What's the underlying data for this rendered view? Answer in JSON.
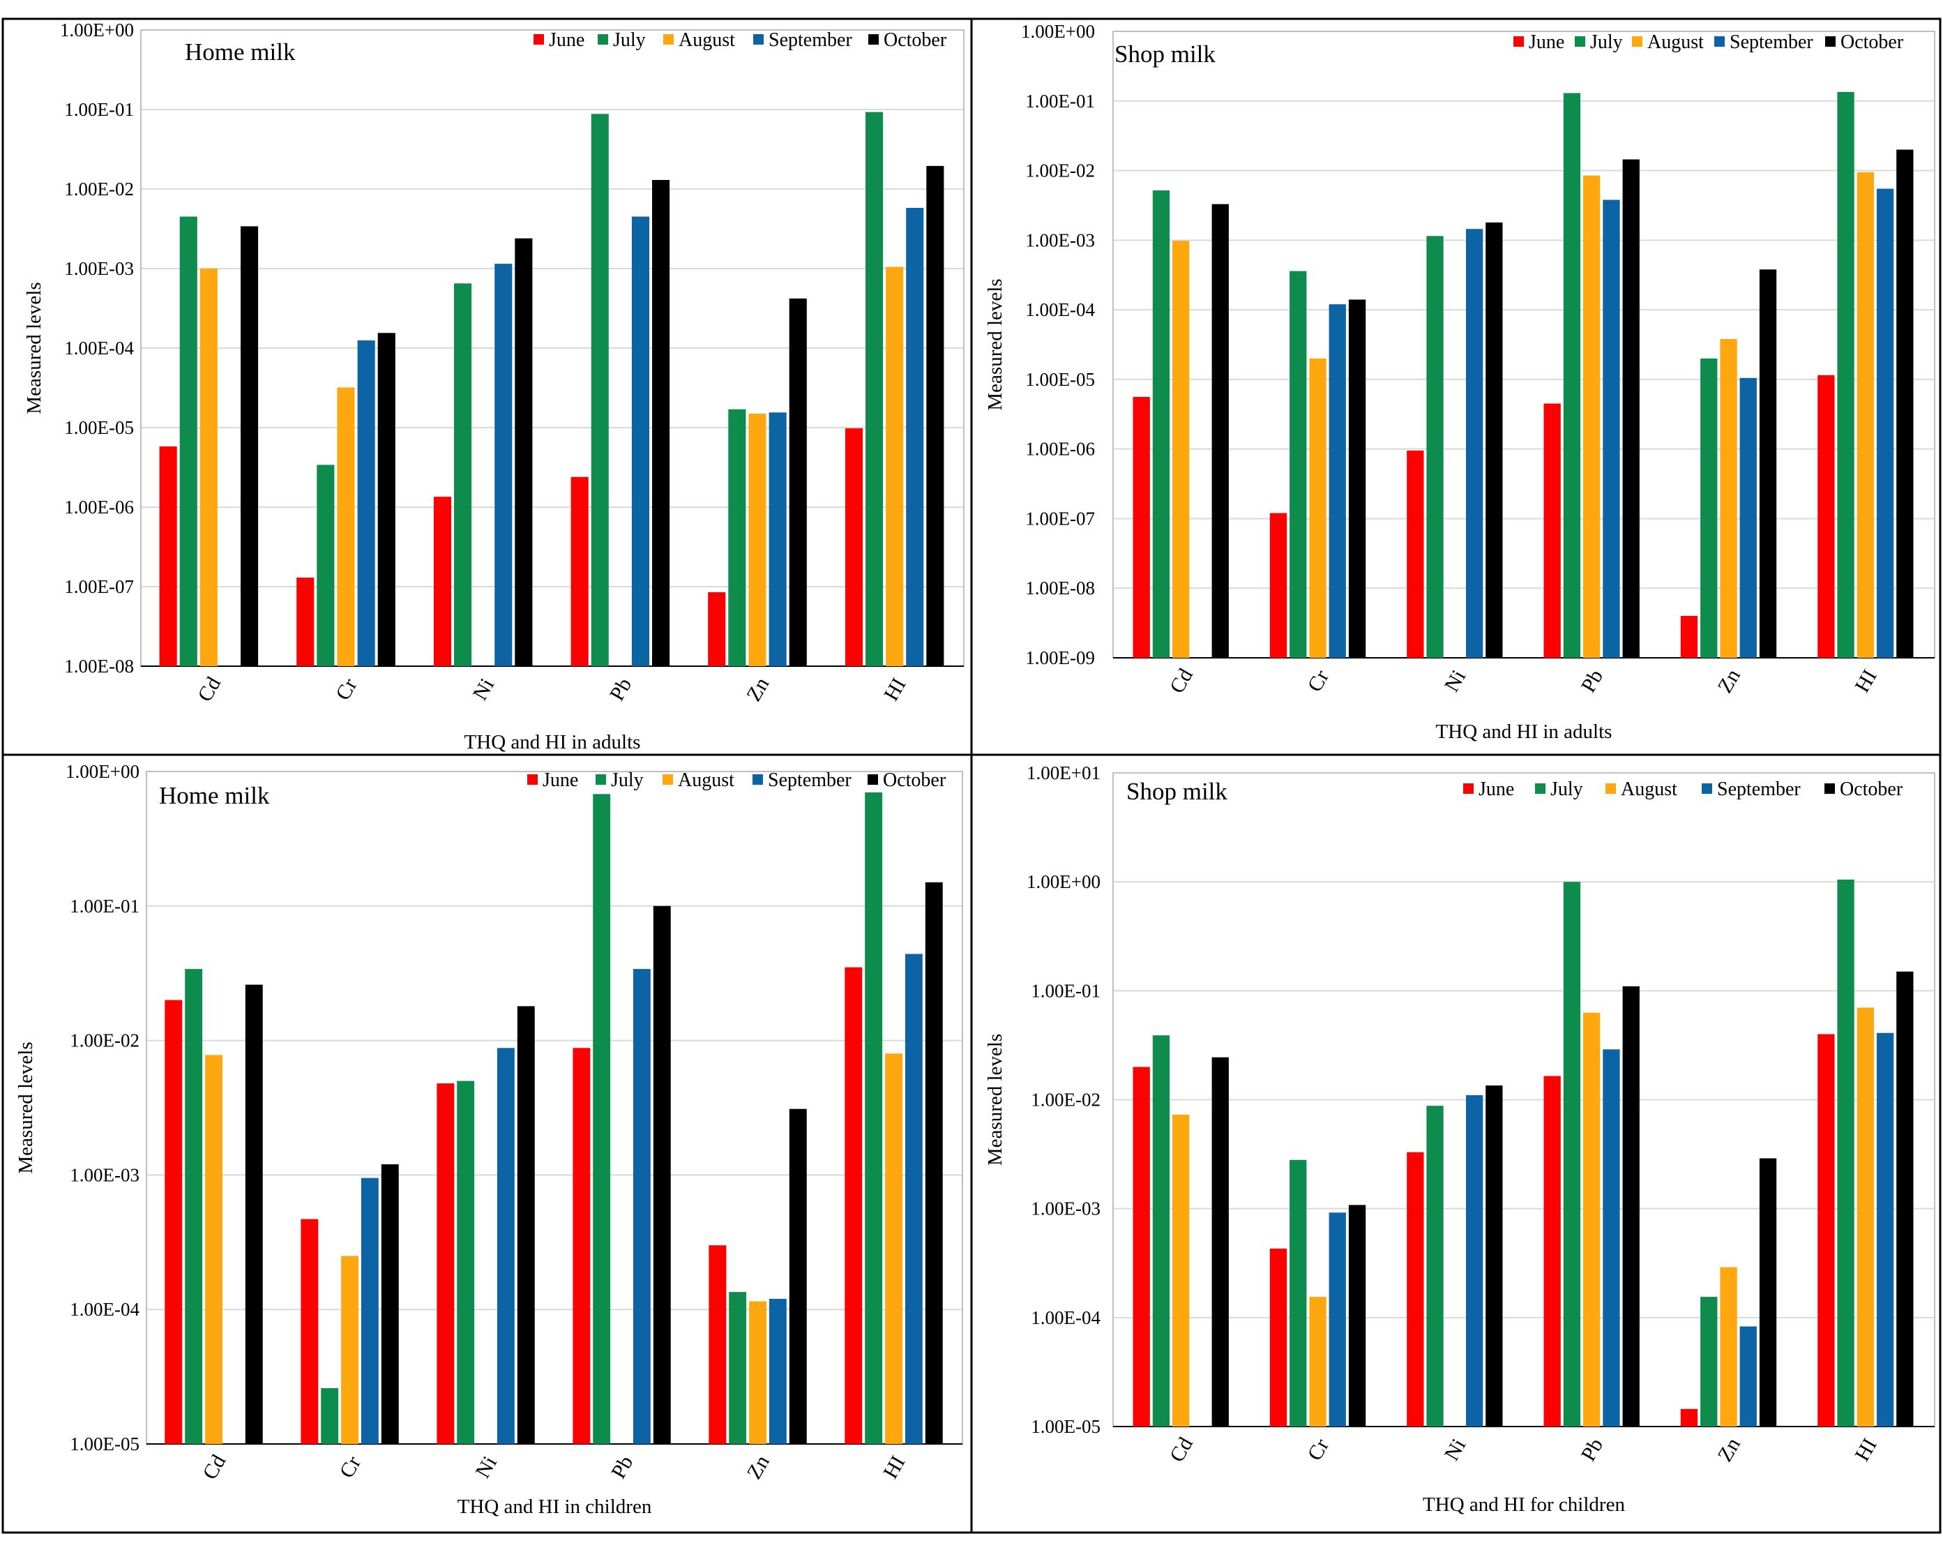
{
  "figure_colors": {
    "June": "#FF0000",
    "July": "#0E8C4E",
    "August": "#FFA70F",
    "September": "#0C64A4",
    "October": "#000000",
    "gridline": "#D9D9D9",
    "frame": "#000000"
  },
  "chart_data": [
    {
      "type": "bar",
      "scale": "log",
      "title": "Home milk",
      "xlabel": "THQ and HI in adults",
      "ylabel": "Measured levels",
      "legend_position": "top-right",
      "ylim": [
        1e-08,
        1
      ],
      "ytick_labels": [
        "1.00E-08",
        "1.00E-07",
        "1.00E-06",
        "1.00E-05",
        "1.00E-04",
        "1.00E-03",
        "1.00E-02",
        "1.00E-01",
        "1.00E+00"
      ],
      "categories": [
        "Cd",
        "Cr",
        "Ni",
        "Pb",
        "Zn",
        "HI"
      ],
      "series": [
        {
          "name": "June",
          "values": [
            5.8e-06,
            1.3e-07,
            1.35e-06,
            2.4e-06,
            8.5e-08,
            9.8e-06
          ]
        },
        {
          "name": "July",
          "values": [
            0.0045,
            3.4e-06,
            0.00065,
            0.088,
            1.7e-05,
            0.093
          ]
        },
        {
          "name": "August",
          "values": [
            0.001,
            3.2e-05,
            null,
            null,
            1.5e-05,
            0.00105
          ]
        },
        {
          "name": "September",
          "values": [
            null,
            0.000125,
            0.00115,
            0.0045,
            1.55e-05,
            0.0058
          ]
        },
        {
          "name": "October",
          "values": [
            0.0034,
            0.000155,
            0.0024,
            0.013,
            0.00042,
            0.0195
          ]
        }
      ]
    },
    {
      "type": "bar",
      "scale": "log",
      "title": "Shop milk",
      "xlabel": "THQ and HI in adults",
      "ylabel": "Measured levels",
      "legend_position": "top-right",
      "ylim": [
        1e-09,
        1
      ],
      "ytick_labels": [
        "1.00E-09",
        "1.00E-08",
        "1.00E-07",
        "1.00E-06",
        "1.00E-05",
        "1.00E-04",
        "1.00E-03",
        "1.00E-02",
        "1.00E-01",
        "1.00E+00"
      ],
      "categories": [
        "Cd",
        "Cr",
        "Ni",
        "Pb",
        "Zn",
        "HI"
      ],
      "series": [
        {
          "name": "June",
          "values": [
            5.6e-06,
            1.2e-07,
            9.5e-07,
            4.5e-06,
            4e-09,
            1.15e-05
          ]
        },
        {
          "name": "July",
          "values": [
            0.0052,
            0.00036,
            0.00115,
            0.13,
            2e-05,
            0.135
          ]
        },
        {
          "name": "August",
          "values": [
            0.00098,
            2e-05,
            null,
            0.0085,
            3.8e-05,
            0.0095
          ]
        },
        {
          "name": "September",
          "values": [
            null,
            0.00012,
            0.00145,
            0.0038,
            1.05e-05,
            0.0055
          ]
        },
        {
          "name": "October",
          "values": [
            0.0033,
            0.00014,
            0.0018,
            0.0145,
            0.00038,
            0.02
          ]
        }
      ]
    },
    {
      "type": "bar",
      "scale": "log",
      "title": "Home milk",
      "xlabel": "THQ and HI in children",
      "ylabel": "Measured levels",
      "legend_position": "top-right",
      "ylim": [
        1e-05,
        1
      ],
      "ytick_labels": [
        "1.00E-05",
        "1.00E-04",
        "1.00E-03",
        "1.00E-02",
        "1.00E-01",
        "1.00E+00"
      ],
      "categories": [
        "Cd",
        "Cr",
        "Ni",
        "Pb",
        "Zn",
        "HI"
      ],
      "series": [
        {
          "name": "June",
          "values": [
            0.02,
            0.00047,
            0.0048,
            0.0088,
            0.0003,
            0.035
          ]
        },
        {
          "name": "July",
          "values": [
            0.034,
            2.6e-05,
            0.005,
            0.68,
            0.000135,
            0.7
          ]
        },
        {
          "name": "August",
          "values": [
            0.0078,
            0.00025,
            null,
            null,
            0.000115,
            0.008
          ]
        },
        {
          "name": "September",
          "values": [
            null,
            0.00095,
            0.0088,
            0.034,
            0.00012,
            0.044
          ]
        },
        {
          "name": "October",
          "values": [
            0.026,
            0.0012,
            0.018,
            0.1,
            0.0031,
            0.15
          ]
        }
      ]
    },
    {
      "type": "bar",
      "scale": "log",
      "title": "Shop milk",
      "xlabel": "THQ and HI for children",
      "ylabel": "Measured levels",
      "legend_position": "top-right",
      "ylim": [
        1e-05,
        10
      ],
      "ytick_labels": [
        "1.00E-05",
        "1.00E-04",
        "1.00E-03",
        "1.00E-02",
        "1.00E-01",
        "1.00E+00",
        "1.00E+01"
      ],
      "categories": [
        "Cd",
        "Cr",
        "Ni",
        "Pb",
        "Zn",
        "HI"
      ],
      "series": [
        {
          "name": "June",
          "values": [
            0.02,
            0.00043,
            0.0033,
            0.0165,
            1.45e-05,
            0.04
          ]
        },
        {
          "name": "July",
          "values": [
            0.039,
            0.0028,
            0.0088,
            1.0,
            0.000155,
            1.05
          ]
        },
        {
          "name": "August",
          "values": [
            0.0073,
            0.000155,
            null,
            0.063,
            0.00029,
            0.07
          ]
        },
        {
          "name": "September",
          "values": [
            null,
            0.00092,
            0.011,
            0.029,
            8.3e-05,
            0.041
          ]
        },
        {
          "name": "October",
          "values": [
            0.0245,
            0.00108,
            0.0135,
            0.11,
            0.0029,
            0.15
          ]
        }
      ]
    }
  ]
}
